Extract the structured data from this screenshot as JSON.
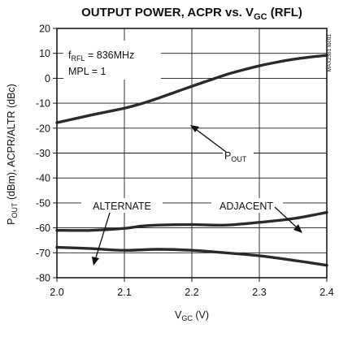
{
  "chart_data": {
    "type": "line",
    "title": {
      "main": "OUTPUT POWER, ACPR vs. V",
      "sub": "GC",
      "tail": " (RFL)"
    },
    "xlabel": {
      "main": "V",
      "sub": "GC",
      "tail": " (V)"
    },
    "ylabel": {
      "p1": "P",
      "sub": "OUT",
      "p2": " (dBm), ACPR/ALTR (dBc)"
    },
    "xlim": [
      2.0,
      2.4
    ],
    "ylim": [
      -80,
      20
    ],
    "x_ticks": [
      2.0,
      2.1,
      2.2,
      2.3,
      2.4
    ],
    "x_tick_labels": [
      "2.0",
      "2.1",
      "2.2",
      "2.3",
      "2.4"
    ],
    "y_ticks": [
      20,
      10,
      0,
      -10,
      -20,
      -30,
      -40,
      -50,
      -60,
      -70,
      -80
    ],
    "y_tick_labels": [
      "20",
      "10",
      "0",
      "-10",
      "-20",
      "-30",
      "-40",
      "-50",
      "-60",
      "-70",
      "-80"
    ],
    "grid": true,
    "conditions": {
      "line1": {
        "p1": "f",
        "sub": "RFL",
        "p2": " = 836MHz"
      },
      "line2": "MPL = 1"
    },
    "figure_code": "MAX2361 toc01",
    "series": [
      {
        "name": "POUT",
        "label": {
          "p1": "P",
          "sub": "OUT"
        },
        "x": [
          2.0,
          2.025,
          2.05,
          2.075,
          2.1,
          2.125,
          2.15,
          2.175,
          2.2,
          2.225,
          2.25,
          2.275,
          2.3,
          2.325,
          2.35,
          2.375,
          2.4
        ],
        "values": [
          -17.8,
          -16.3,
          -14.8,
          -13.4,
          -12.0,
          -10.2,
          -8.0,
          -5.6,
          -3.2,
          -0.9,
          1.4,
          3.3,
          5.0,
          6.4,
          7.6,
          8.5,
          9.2
        ]
      },
      {
        "name": "ADJACENT",
        "label": {
          "p1": "ADJACENT"
        },
        "x": [
          2.0,
          2.05,
          2.1,
          2.125,
          2.15,
          2.2,
          2.25,
          2.3,
          2.35,
          2.4
        ],
        "values": [
          -61.0,
          -61.0,
          -60.2,
          -59.3,
          -58.9,
          -58.7,
          -58.9,
          -57.8,
          -56.3,
          -53.8
        ]
      },
      {
        "name": "ALTERNATE",
        "label": {
          "p1": "ALTERNATE"
        },
        "x": [
          2.0,
          2.05,
          2.1,
          2.15,
          2.2,
          2.25,
          2.3,
          2.35,
          2.4
        ],
        "values": [
          -67.8,
          -68.3,
          -69.0,
          -68.6,
          -69.0,
          -70.0,
          -71.2,
          -73.0,
          -75.0
        ]
      }
    ]
  }
}
